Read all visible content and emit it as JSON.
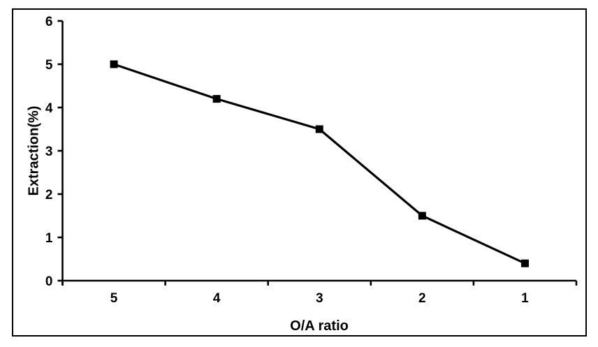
{
  "chart_data": {
    "type": "line",
    "title": "",
    "xlabel": "O/A ratio",
    "ylabel": "Extraction(%)",
    "categories": [
      "5",
      "4",
      "3",
      "2",
      "1"
    ],
    "values": [
      5.0,
      4.2,
      3.5,
      1.5,
      0.4
    ],
    "ylim": [
      0,
      6
    ],
    "yticks": [
      0,
      1,
      2,
      3,
      4,
      5,
      6
    ],
    "grid": false,
    "legend": false,
    "line_color": "#000000",
    "marker": "square",
    "marker_color": "#000000",
    "axis_color": "#000000",
    "background_color": "#ffffff"
  }
}
